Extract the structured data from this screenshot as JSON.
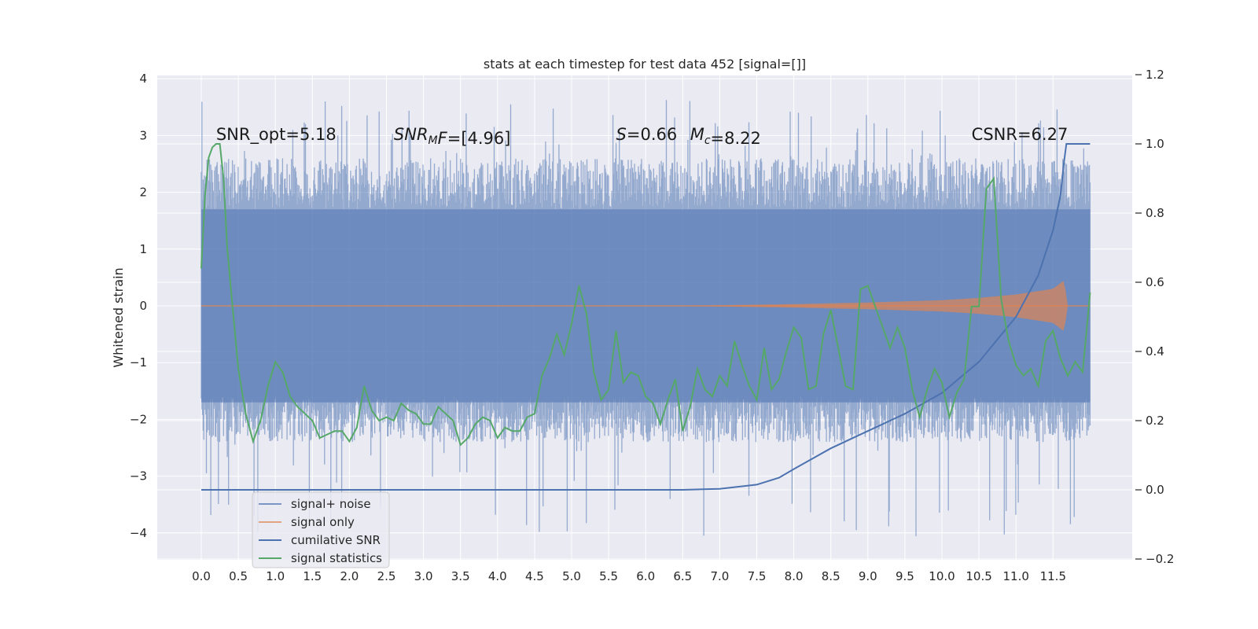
{
  "chart_data": {
    "type": "line",
    "title": "stats at each timestep for test data 452 [signal=[]]",
    "xlabel": "",
    "ylabel": "Whitened strain",
    "y2label": "",
    "xlim": [
      -0.6,
      12.55
    ],
    "ylim": [
      -4.5,
      4.05
    ],
    "y2lim": [
      -0.2,
      1.2
    ],
    "grid": true,
    "legend_position": "lower-left",
    "x_ticks": [
      "0.0",
      "0.5",
      "1.0",
      "1.5",
      "2.0",
      "2.5",
      "3.0",
      "3.5",
      "4.0",
      "4.5",
      "5.0",
      "5.5",
      "6.0",
      "6.5",
      "7.0",
      "7.5",
      "8.0",
      "8.5",
      "9.0",
      "9.5",
      "10.0",
      "10.5",
      "11.0",
      "11.5"
    ],
    "y_ticks": [
      "4",
      "3",
      "2",
      "1",
      "0",
      "−1",
      "−2",
      "−3",
      "−4"
    ],
    "y2_ticks": [
      "1.2",
      "1.0",
      "0.8",
      "0.6",
      "0.4",
      "0.2",
      "0.0",
      "−0.2"
    ],
    "annotations": [
      {
        "id": "snr_opt",
        "parts": [
          {
            "t": "SNR_opt=5.18"
          }
        ],
        "x": 0.2,
        "y": 2.95
      },
      {
        "id": "snr_mf",
        "parts": [
          {
            "t": "SNR",
            "i": true
          },
          {
            "t": "M",
            "i": true,
            "sub": true
          },
          {
            "t": "F",
            "i": true
          },
          {
            "t": "=[4.96]"
          }
        ],
        "x": 2.6,
        "y": 2.95
      },
      {
        "id": "s_val",
        "parts": [
          {
            "t": "S",
            "i": true
          },
          {
            "t": "=0.66"
          }
        ],
        "x": 5.6,
        "y": 2.95
      },
      {
        "id": "mc_val",
        "parts": [
          {
            "t": "M",
            "i": true
          },
          {
            "t": "c",
            "i": true,
            "sub": true
          },
          {
            "t": "=8.22"
          }
        ],
        "x": 6.6,
        "y": 2.95
      },
      {
        "id": "csnr",
        "parts": [
          {
            "t": "CSNR=6.27"
          }
        ],
        "x": 10.4,
        "y": 2.95
      }
    ],
    "series": [
      {
        "name": "signal+ noise",
        "color": "#4c72b0",
        "axis": "left",
        "style": "noise-band",
        "x_range": [
          0,
          12.0
        ],
        "envelope_core": [
          -1.7,
          1.7
        ],
        "envelope_typical": [
          -2.4,
          2.6
        ],
        "envelope_extreme": [
          -4.1,
          3.65
        ]
      },
      {
        "name": "signal only",
        "color": "#dd8452",
        "axis": "left",
        "style": "chirp",
        "x_range": [
          0,
          12.0
        ],
        "amplitude_x": [
          0,
          6.5,
          7.0,
          8.0,
          9.0,
          10.0,
          10.5,
          11.0,
          11.5,
          11.65,
          11.7,
          12.0
        ],
        "amplitude_y": [
          0,
          0,
          0.01,
          0.03,
          0.06,
          0.1,
          0.14,
          0.2,
          0.3,
          0.45,
          0,
          0
        ]
      },
      {
        "name": "cumilative SNR",
        "color": "#4c72b0",
        "axis": "right",
        "x": [
          0,
          6.5,
          7.0,
          7.5,
          7.8,
          8.0,
          8.5,
          9.0,
          9.5,
          10.0,
          10.5,
          11.0,
          11.3,
          11.5,
          11.6,
          11.65,
          11.68,
          12.0
        ],
        "y": [
          0.0,
          0.0,
          0.003,
          0.015,
          0.035,
          0.06,
          0.12,
          0.17,
          0.22,
          0.28,
          0.37,
          0.5,
          0.62,
          0.75,
          0.85,
          0.95,
          1.0,
          1.0
        ]
      },
      {
        "name": "signal statistics",
        "color": "#55a868",
        "axis": "right",
        "x": [
          0.0,
          0.05,
          0.1,
          0.15,
          0.2,
          0.25,
          0.3,
          0.35,
          0.4,
          0.5,
          0.6,
          0.7,
          0.8,
          0.9,
          1.0,
          1.1,
          1.2,
          1.3,
          1.4,
          1.5,
          1.6,
          1.7,
          1.8,
          1.9,
          2.0,
          2.1,
          2.2,
          2.3,
          2.4,
          2.5,
          2.6,
          2.7,
          2.8,
          2.9,
          3.0,
          3.1,
          3.2,
          3.3,
          3.4,
          3.5,
          3.6,
          3.7,
          3.8,
          3.9,
          4.0,
          4.1,
          4.2,
          4.3,
          4.4,
          4.5,
          4.6,
          4.7,
          4.8,
          4.9,
          5.0,
          5.1,
          5.2,
          5.3,
          5.4,
          5.5,
          5.6,
          5.7,
          5.8,
          5.9,
          6.0,
          6.1,
          6.2,
          6.3,
          6.4,
          6.5,
          6.6,
          6.7,
          6.8,
          6.9,
          7.0,
          7.1,
          7.2,
          7.3,
          7.4,
          7.5,
          7.6,
          7.7,
          7.8,
          7.9,
          8.0,
          8.1,
          8.2,
          8.3,
          8.4,
          8.5,
          8.6,
          8.7,
          8.8,
          8.9,
          9.0,
          9.1,
          9.2,
          9.3,
          9.4,
          9.5,
          9.6,
          9.7,
          9.8,
          9.9,
          10.0,
          10.1,
          10.2,
          10.3,
          10.4,
          10.5,
          10.6,
          10.7,
          10.8,
          10.9,
          11.0,
          11.1,
          11.2,
          11.3,
          11.4,
          11.5,
          11.6,
          11.7,
          11.8,
          11.9,
          12.0
        ],
        "y": [
          0.64,
          0.85,
          0.96,
          0.99,
          1.0,
          1.0,
          0.9,
          0.7,
          0.58,
          0.35,
          0.22,
          0.14,
          0.2,
          0.3,
          0.37,
          0.34,
          0.27,
          0.24,
          0.22,
          0.2,
          0.15,
          0.16,
          0.17,
          0.17,
          0.14,
          0.18,
          0.3,
          0.23,
          0.2,
          0.21,
          0.2,
          0.25,
          0.23,
          0.22,
          0.19,
          0.19,
          0.24,
          0.22,
          0.2,
          0.13,
          0.15,
          0.19,
          0.21,
          0.2,
          0.15,
          0.18,
          0.17,
          0.17,
          0.21,
          0.22,
          0.33,
          0.38,
          0.45,
          0.39,
          0.48,
          0.59,
          0.51,
          0.34,
          0.26,
          0.29,
          0.46,
          0.31,
          0.34,
          0.33,
          0.27,
          0.25,
          0.19,
          0.26,
          0.32,
          0.17,
          0.24,
          0.35,
          0.29,
          0.27,
          0.33,
          0.3,
          0.43,
          0.36,
          0.3,
          0.26,
          0.41,
          0.29,
          0.32,
          0.4,
          0.47,
          0.44,
          0.29,
          0.3,
          0.45,
          0.52,
          0.41,
          0.3,
          0.29,
          0.58,
          0.59,
          0.53,
          0.47,
          0.41,
          0.47,
          0.41,
          0.29,
          0.21,
          0.29,
          0.35,
          0.31,
          0.21,
          0.28,
          0.32,
          0.53,
          0.53,
          0.87,
          0.9,
          0.55,
          0.43,
          0.36,
          0.33,
          0.35,
          0.3,
          0.43,
          0.46,
          0.38,
          0.33,
          0.37,
          0.34,
          0.57
        ]
      }
    ]
  }
}
